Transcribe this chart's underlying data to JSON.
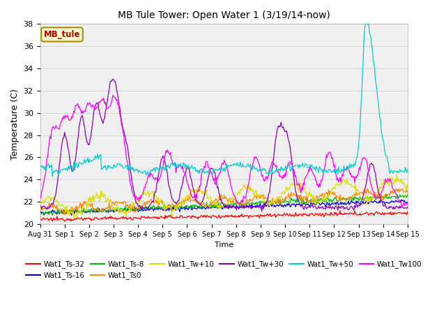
{
  "title": "MB Tule Tower: Open Water 1 (3/19/14-now)",
  "xlabel": "Time",
  "ylabel": "Temperature (C)",
  "ylim": [
    20,
    38
  ],
  "yticks": [
    20,
    22,
    24,
    26,
    28,
    30,
    32,
    34,
    36,
    38
  ],
  "legend_box_label": "MB_tule",
  "n_points": 480,
  "series_colors": {
    "Wat1_Ts-32": "#ff0000",
    "Wat1_Ts-16": "#0000cc",
    "Wat1_Ts-8": "#00bb00",
    "Wat1_Ts0": "#ff8800",
    "Wat1_Tw+10": "#dddd00",
    "Wat1_Tw+30": "#8800aa",
    "Wat1_Tw+50": "#00cccc",
    "Wat1_Tw100": "#ff00ff"
  },
  "background_color": "#ffffff",
  "plot_bg_color": "#f0f0f0",
  "grid_color": "#d8d8d8"
}
